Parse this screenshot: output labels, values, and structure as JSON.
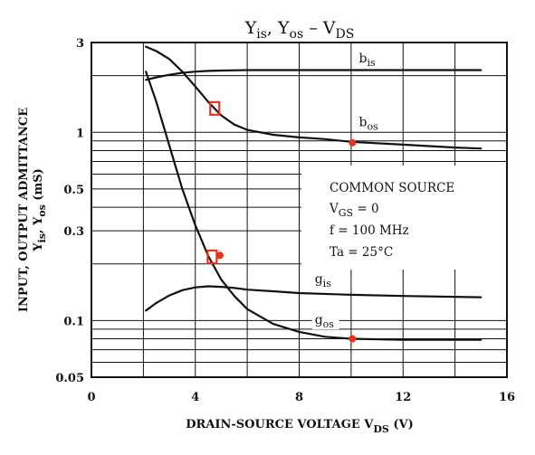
{
  "chart_data": {
    "type": "line",
    "title": {
      "main_a": "Y",
      "sub_a": "is",
      "sep": ",  Y",
      "sub_b": "os",
      "dash": "  –  V",
      "sub_c": "DS"
    },
    "xlabel": {
      "main": "DRAIN-SOURCE VOLTAGE   V",
      "sub": "DS",
      "unit": "   (V)"
    },
    "ylabel": {
      "line1": "INPUT, OUTPUT ADMITTANCE",
      "line2_a": "Y",
      "line2_sub_a": "is",
      "line2_b": ", Y",
      "line2_sub_b": "os",
      "line2_unit": "   (mS)"
    },
    "xlim": [
      0,
      16
    ],
    "ylim": [
      0.05,
      3
    ],
    "yscale": "log",
    "x_ticks": [
      0,
      4,
      8,
      12,
      16
    ],
    "x_tick_labels": [
      "0",
      "4",
      "8",
      "12",
      "16"
    ],
    "y_labeled_ticks": [
      0.05,
      0.1,
      0.3,
      0.5,
      1,
      3
    ],
    "y_tick_labels": [
      "0.05",
      "0.1",
      "0.3",
      "0.5",
      "1",
      "3"
    ],
    "y_grid": [
      0.05,
      0.06,
      0.07,
      0.08,
      0.09,
      0.1,
      0.2,
      0.3,
      0.4,
      0.5,
      0.6,
      0.7,
      0.8,
      0.9,
      1,
      2,
      3
    ],
    "grid": true,
    "series": [
      {
        "name": "b",
        "name_sub": "is",
        "label_at": {
          "x": 10.3,
          "y": 2.35
        },
        "x": [
          2.1,
          2.5,
          3.0,
          3.5,
          4.0,
          4.5,
          5.0,
          6.0,
          8.0,
          10.0,
          12.0,
          15.0
        ],
        "y": [
          1.9,
          1.96,
          2.02,
          2.07,
          2.1,
          2.12,
          2.13,
          2.14,
          2.14,
          2.14,
          2.14,
          2.14
        ]
      },
      {
        "name": "b",
        "name_sub": "os",
        "label_at": {
          "x": 10.3,
          "y": 1.08
        },
        "x": [
          2.1,
          2.5,
          3.0,
          3.5,
          4.0,
          4.5,
          5.0,
          5.5,
          6.0,
          7.0,
          8.0,
          9.0,
          10.0,
          12.0,
          14.0,
          15.0
        ],
        "y": [
          2.85,
          2.7,
          2.45,
          2.1,
          1.75,
          1.45,
          1.23,
          1.1,
          1.03,
          0.97,
          0.94,
          0.92,
          0.89,
          0.86,
          0.83,
          0.82
        ]
      },
      {
        "name": "g",
        "name_sub": "is",
        "label_at": {
          "x": 8.6,
          "y": 0.158
        },
        "x": [
          2.1,
          2.5,
          3.0,
          3.5,
          4.0,
          4.5,
          5.0,
          5.5,
          6.0,
          7.0,
          8.0,
          10.0,
          12.0,
          15.0
        ],
        "y": [
          0.113,
          0.124,
          0.136,
          0.145,
          0.15,
          0.152,
          0.151,
          0.149,
          0.146,
          0.143,
          0.14,
          0.137,
          0.135,
          0.133
        ]
      },
      {
        "name": "g",
        "name_sub": "os",
        "label_at": {
          "x": 8.6,
          "y": 0.096
        },
        "x": [
          2.1,
          2.5,
          3.0,
          3.5,
          4.0,
          4.5,
          5.0,
          5.5,
          6.0,
          7.0,
          8.0,
          9.0,
          10.0,
          12.0,
          15.0
        ],
        "y": [
          2.1,
          1.45,
          0.85,
          0.5,
          0.32,
          0.22,
          0.165,
          0.135,
          0.115,
          0.096,
          0.087,
          0.082,
          0.08,
          0.079,
          0.079
        ]
      }
    ],
    "markers": [
      {
        "shape": "square",
        "x": 4.75,
        "y": 1.34,
        "color": "#e8321e"
      },
      {
        "shape": "square",
        "x": 4.65,
        "y": 0.218,
        "color": "#e8321e"
      },
      {
        "shape": "dot",
        "x": 4.95,
        "y": 0.222,
        "color": "#e8321e"
      },
      {
        "shape": "dot",
        "x": 10.05,
        "y": 0.88,
        "color": "#e8321e"
      },
      {
        "shape": "dot",
        "x": 10.05,
        "y": 0.08,
        "color": "#e8321e"
      }
    ],
    "conditions": [
      {
        "text": "COMMON SOURCE",
        "sub": "",
        "rest": ""
      },
      {
        "text": "V",
        "sub": "GS",
        "rest": " = 0"
      },
      {
        "text": "f = 100 MHz",
        "sub": "",
        "rest": ""
      },
      {
        "text": "Ta = 25°C",
        "sub": "",
        "rest": ""
      }
    ],
    "colors": {
      "curve": "#111111",
      "grid": "#111111",
      "marker": "#e8321e",
      "background": "#ffffff"
    }
  }
}
